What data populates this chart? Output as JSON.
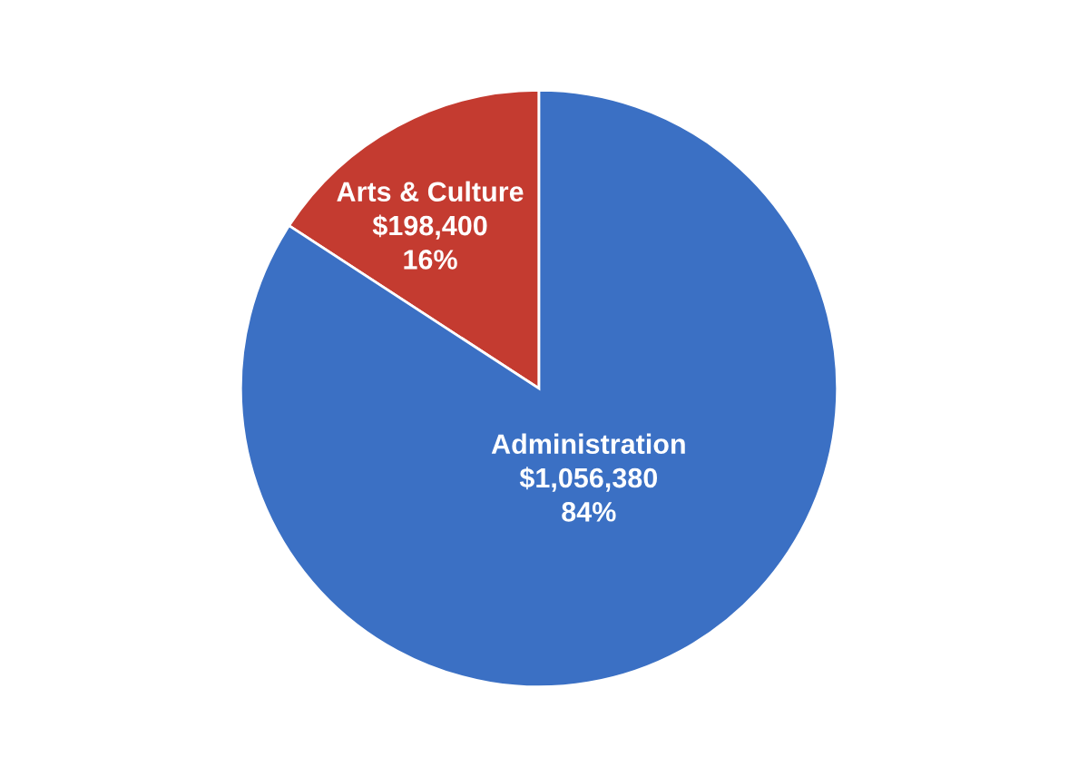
{
  "chart_data": {
    "type": "pie",
    "categories": [
      "Arts & Culture",
      "Administration"
    ],
    "values": [
      198400,
      1056380
    ],
    "colors": [
      "#c43b30",
      "#3b70c4"
    ],
    "value_labels": [
      "$198,400\n16%",
      "$1,056,380\n84%"
    ]
  }
}
